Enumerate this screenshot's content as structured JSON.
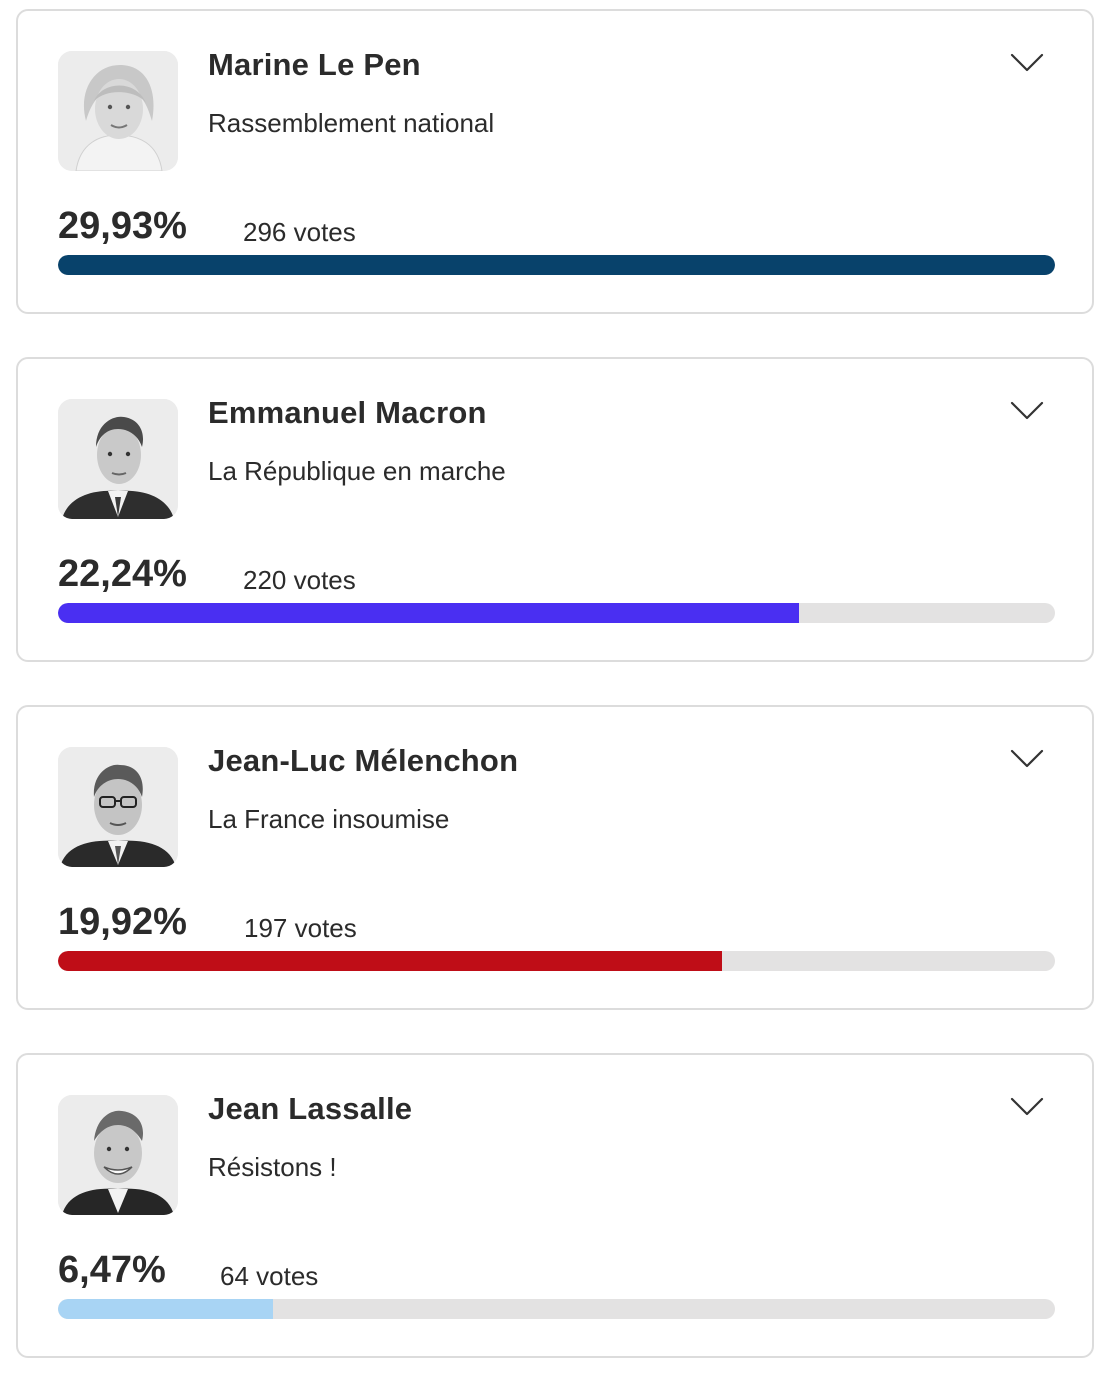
{
  "candidates": [
    {
      "name": "Marine Le Pen",
      "party": "Rassemblement national",
      "percent": "29,93%",
      "votes": "296 votes",
      "bar_fraction": 1.0,
      "bar_color": "#08426b",
      "photo_icon": "candidate-photo"
    },
    {
      "name": "Emmanuel Macron",
      "party": "La République en marche",
      "percent": "22,24%",
      "votes": "220 votes",
      "bar_fraction": 0.743,
      "bar_color": "#4a2ff2",
      "photo_icon": "candidate-photo"
    },
    {
      "name": "Jean-Luc Mélenchon",
      "party": "La France insoumise",
      "percent": "19,92%",
      "votes": "197 votes",
      "bar_fraction": 0.666,
      "bar_color": "#bf0d17",
      "photo_icon": "candidate-photo"
    },
    {
      "name": "Jean Lassalle",
      "party": "Résistons !",
      "percent": "6,47%",
      "votes": "64 votes",
      "bar_fraction": 0.216,
      "bar_color": "#a8d4f4",
      "photo_icon": "candidate-photo"
    }
  ],
  "expand_icon": "chevron-down-icon",
  "track_color": "#e3e2e2"
}
